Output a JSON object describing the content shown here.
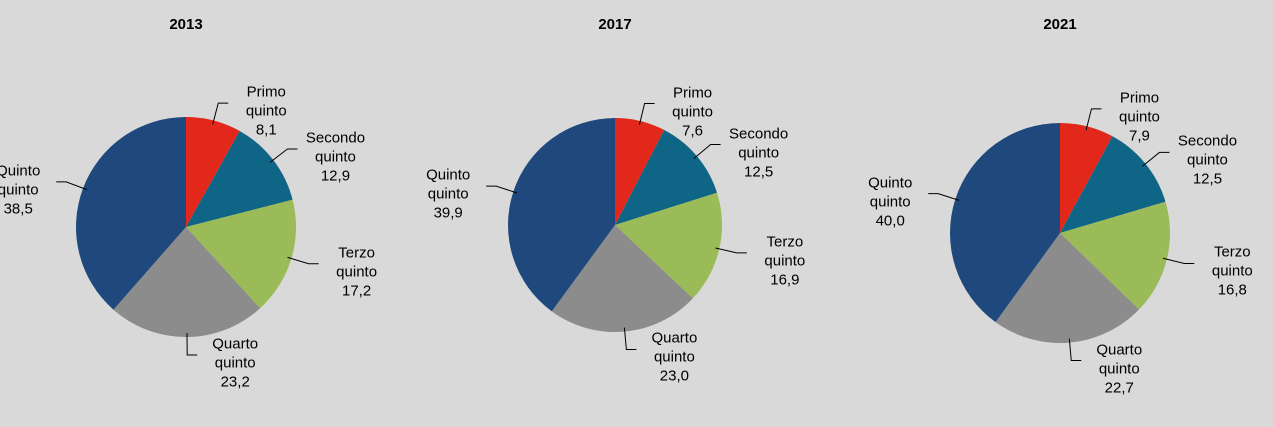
{
  "chart_data": [
    {
      "type": "pie",
      "title": "2013",
      "categories": [
        "Primo quinto",
        "Secondo quinto",
        "Terzo quinto",
        "Quarto quinto",
        "Quinto quinto"
      ],
      "values": [
        8.1,
        12.9,
        17.2,
        23.2,
        38.5
      ],
      "value_labels": [
        "8,1",
        "12,9",
        "17,2",
        "23,2",
        "38,5"
      ],
      "colors": [
        "#e2271b",
        "#0e6586",
        "#9bbb59",
        "#8c8c8c",
        "#1f497d"
      ]
    },
    {
      "type": "pie",
      "title": "2017",
      "categories": [
        "Primo quinto",
        "Secondo quinto",
        "Terzo quinto",
        "Quarto quinto",
        "Quinto quinto"
      ],
      "values": [
        7.6,
        12.5,
        16.9,
        23.0,
        39.9
      ],
      "value_labels": [
        "7,6",
        "12,5",
        "16,9",
        "23,0",
        "39,9"
      ],
      "colors": [
        "#e2271b",
        "#0e6586",
        "#9bbb59",
        "#8c8c8c",
        "#1f497d"
      ]
    },
    {
      "type": "pie",
      "title": "2021",
      "categories": [
        "Primo quinto",
        "Secondo quinto",
        "Terzo quinto",
        "Quarto quinto",
        "Quinto quinto"
      ],
      "values": [
        7.9,
        12.5,
        16.8,
        22.7,
        40.0
      ],
      "value_labels": [
        "7,9",
        "12,5",
        "16,8",
        "22,7",
        "40,0"
      ],
      "colors": [
        "#e2271b",
        "#0e6586",
        "#9bbb59",
        "#8c8c8c",
        "#1f497d"
      ]
    }
  ]
}
